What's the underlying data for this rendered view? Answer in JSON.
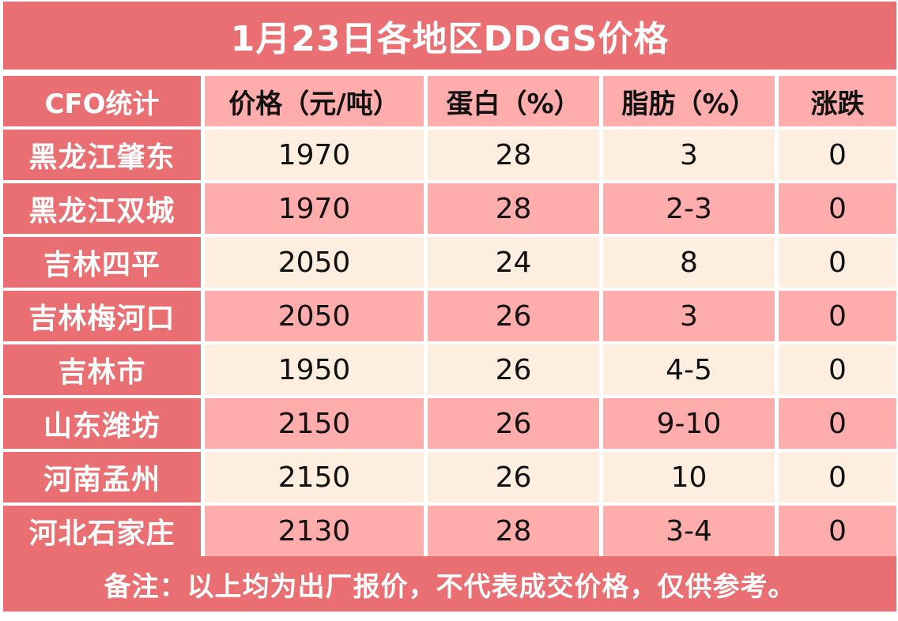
{
  "title": "1月23日各地区DDGS价格",
  "headers": {
    "region": "CFO统计",
    "price": "价格（元/吨）",
    "protein": "蛋白（%）",
    "fat": "脂肪（%）",
    "change": "涨跌"
  },
  "rows": [
    {
      "region": "黑龙江肇东",
      "price": "1970",
      "protein": "28",
      "fat": "3",
      "change": "0"
    },
    {
      "region": "黑龙江双城",
      "price": "1970",
      "protein": "28",
      "fat": "2-3",
      "change": "0"
    },
    {
      "region": "吉林四平",
      "price": "2050",
      "protein": "24",
      "fat": "8",
      "change": "0"
    },
    {
      "region": "吉林梅河口",
      "price": "2050",
      "protein": "26",
      "fat": "3",
      "change": "0"
    },
    {
      "region": "吉林市",
      "price": "1950",
      "protein": "26",
      "fat": "4-5",
      "change": "0"
    },
    {
      "region": "山东潍坊",
      "price": "2150",
      "protein": "26",
      "fat": "9-10",
      "change": "0"
    },
    {
      "region": "河南孟州",
      "price": "2150",
      "protein": "26",
      "fat": "10",
      "change": "0"
    },
    {
      "region": "河北石家庄",
      "price": "2130",
      "protein": "28",
      "fat": "3-4",
      "change": "0"
    }
  ],
  "note": "备注：以上均为出厂报价，不代表成交价格，仅供参考。",
  "colors": {
    "accent": "#e96f72",
    "row_dark": "#ffacad",
    "row_light": "#fdeee0"
  }
}
